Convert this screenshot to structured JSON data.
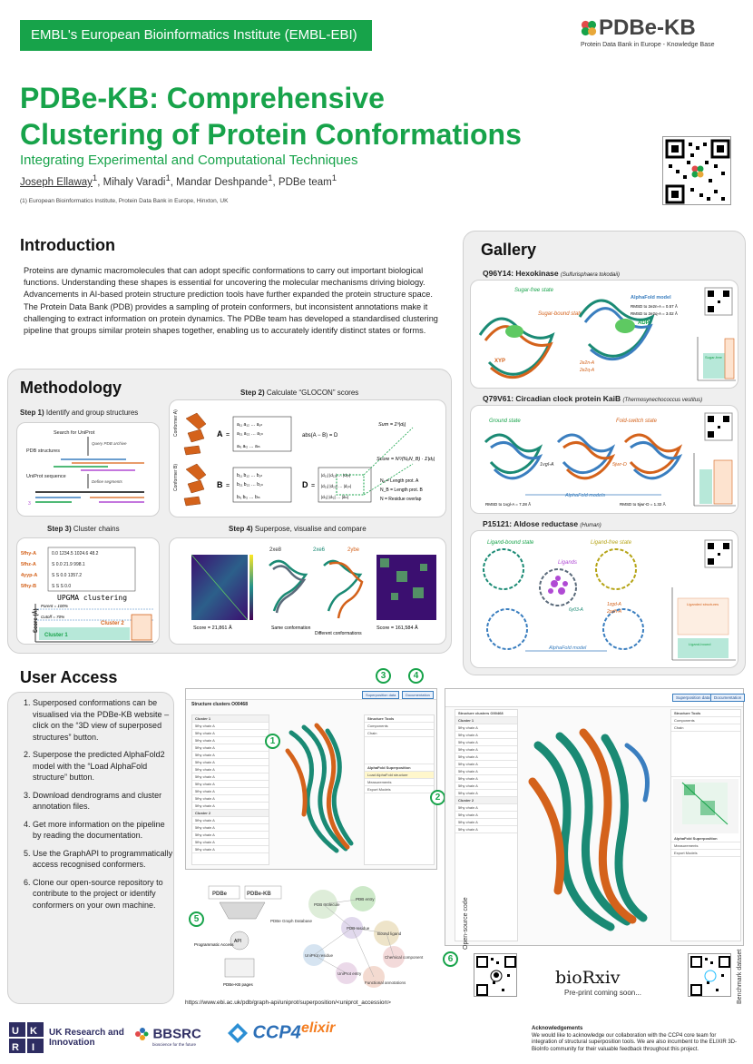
{
  "header": {
    "institute": "EMBL's European Bioinformatics Institute (EMBL-EBI)",
    "logo_title": "PDBe-KB",
    "logo_subtitle": "Protein Data Bank in Europe - Knowledge Base"
  },
  "title": {
    "line1": "PDBe-KB: Comprehensive",
    "line2": "Clustering of Protein Conformations",
    "subtitle": "Integrating Experimental and Computational Techniques"
  },
  "authors": {
    "a1": "Joseph Ellaway",
    "a2": "Mihaly Varadi",
    "a3": "Mandar Deshpande",
    "a4": "PDBe team",
    "sup": "1",
    "affiliation": "(1)  European Bioinformatics Institute, Protein Data Bank in Europe, Hinxton, UK"
  },
  "introduction": {
    "heading": "Introduction",
    "text": "Proteins are dynamic macromolecules that can adopt specific conformations to carry out important biological functions. Understanding these shapes is essential for uncovering the molecular mechanisms driving biology. Advancements in AI-based protein structure prediction tools have further expanded the protein structure space. The Protein Data Bank (PDB) provides a sampling of protein conformers, but inconsistent annotations make it challenging to extract information on protein dynamics. The PDBe team has developed a standardised clustering pipeline that groups similar protein shapes together, enabling us to accurately identify distinct states or forms."
  },
  "methodology": {
    "heading": "Methodology",
    "step1": "Step 1)",
    "step1_text": "Identify and group structures",
    "step1_labels": [
      "Search for UniProt",
      "Query PDB archive",
      "PDB structures",
      "Define segments",
      "UniProt sequence"
    ],
    "step2": "Step 2)",
    "step2_text": "Calculate “GLOCON” scores",
    "step2_labels": [
      "Conformer A)",
      "Conformer B)",
      "abs(A − B) = D",
      "Sum =",
      "Score =",
      "Nₐ = Length prot. A",
      "Nᵦ = Length prot. B",
      "N = Residue overlap"
    ],
    "step3": "Step 3)",
    "step3_text": "Cluster chains",
    "step3_labels": [
      "UPGMA clustering",
      "Parent = 100%",
      "Cutoff = 70%",
      "Cluster 1",
      "Cluster 2",
      "Score (Å)"
    ],
    "step3_chains": [
      "5fhy-A",
      "5fhz-A",
      "4yyp-A",
      "5fhy-B"
    ],
    "step4": "Step 4)",
    "step4_text": "Superpose, visualise and compare",
    "step4_labels": [
      "2xe8",
      "2xe6",
      "2ybe",
      "Same conformation",
      "Different conformations",
      "Score = 21,861 Å",
      "Score = 161,584 Å"
    ]
  },
  "gallery": {
    "heading": "Gallery",
    "items": [
      {
        "id": "Q96Y14: Hexokinase",
        "organism": "(Sulfurisphaera tokodaii)",
        "labels": [
          "Sugar-free state",
          "Sugar-bound state",
          "AlphaFold model",
          "RMSD to 2e2n-A = 0.57 Å",
          "RMSD to 2e2q-A = 3.02 Å",
          "ADP",
          "XYP",
          "2e2n-A",
          "2e2q-A",
          "Sugar-free"
        ]
      },
      {
        "id": "Q79V61: Circadian clock protein KaiB",
        "organism": "(Thermosynechococcus vestitus)",
        "labels": [
          "Ground state",
          "Fold-switch state",
          "1vgl-A",
          "5jwr-D",
          "AlphaFold models",
          "RMSD to 1vgl-A = 7.28 Å",
          "RMSD to 5jwr-D = 1.32 Å"
        ]
      },
      {
        "id": "P15121: Aldose reductase",
        "organism": "(Human)",
        "labels": [
          "Ligand-bound state",
          "Ligand-free state",
          "Ligands",
          "1zgd-A",
          "2pdh-A",
          "6y03-A",
          "AlphaFold model",
          "Liganded structures",
          "Ligand-bound"
        ]
      }
    ]
  },
  "user_access": {
    "heading": "User Access",
    "items": [
      "Superposed conformations can be visualised via the PDBe-KB website – click on the “3D view of superposed structures” button.",
      "Superpose the predicted AlphaFold2 model with the “Load AlphaFold structure” button.",
      "Download dendrograms and cluster annotation files.",
      "Get more information on the pipeline by reading the documentation.",
      "Use the GraphAPI to programmatically access recognised conformers.",
      "Clone our open-source repository to contribute to the project or identify conformers on your own machine."
    ],
    "numbers": [
      "1",
      "2",
      "3",
      "4",
      "5",
      "6"
    ],
    "url": "https://www.ebi.ac.uk/pdb/graph-api/uniprot/superposition/<uniprot_accession>",
    "open_source": "Open-source code",
    "benchmark": "Benchmark dataset",
    "biorxiv": "bioRxiv",
    "preprint": "Pre-print coming soon...",
    "ui_title": "Structure clusters O00468",
    "ui_buttons": [
      "Superposition data",
      "Documentation"
    ],
    "ui_panels": [
      "Structure Tools",
      "Components",
      "Chain",
      "AlphaFold Superposition",
      "Load AlphaFold structure",
      "Measurements",
      "Export Models"
    ],
    "cluster1": "Cluster 1",
    "cluster2": "Cluster 2",
    "chain_label": "5fhy chain A",
    "graph": [
      "PDBe",
      "PDBe-KB",
      "PDBe Graph Database",
      "Programmatic Access",
      "API",
      "PDBe-KB pages",
      "PDB molecule",
      "PDB entry",
      "PDB residue",
      "Bound ligand",
      "Chemical component",
      "UniProt residue",
      "UniProt entry",
      "Functional annotations"
    ]
  },
  "footer": {
    "ukri": "UK Research and Innovation",
    "bbsrc": "BBSRC",
    "bbsrc_sub": "bioscience for the future",
    "ccp4": "CCP4",
    "elixir": "elixir",
    "ack_title": "Acknowledgements",
    "ack_text": "We would like to acknowledge our collaboration with the CCP4 core team for integration of structural superposition tools. We are also incumbent to the ELIXIR 3D-BioInfo community for their valuable feedback throughout this project."
  },
  "colors": {
    "green": "#17a34a",
    "orange": "#d4621b",
    "teal": "#1a8a74"
  }
}
